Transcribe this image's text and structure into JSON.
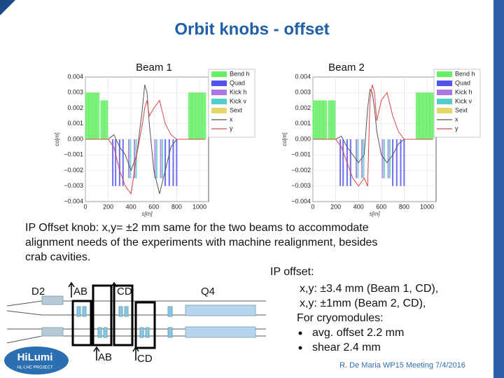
{
  "header": {
    "title": "Orbit knobs - offset"
  },
  "chart_data": [
    {
      "type": "line",
      "title": "Beam 1",
      "xlabel": "s[m]",
      "ylabel": "co[m]",
      "xlim": [
        0,
        1080
      ],
      "ylim": [
        -0.004,
        0.004
      ],
      "xticks": [
        0,
        200,
        400,
        600,
        800,
        1000
      ],
      "yticks": [
        {
          "value": -0.004,
          "label": "−0.004"
        },
        {
          "value": -0.003,
          "label": "−0.003"
        },
        {
          "value": -0.002,
          "label": "−0.002"
        },
        {
          "value": -0.001,
          "label": "−0.001"
        },
        {
          "value": 0,
          "label": "0.000"
        },
        0.001,
        0.002,
        0.003,
        0.004
      ],
      "grid": true,
      "series": [
        {
          "name": "Bend h",
          "color": "#66ee66",
          "kind": "bar",
          "x": [
            15,
            45,
            75,
            105,
            150,
            180,
            920,
            950,
            980,
            1010,
            1040
          ],
          "values": [
            0.003,
            0.003,
            0.003,
            0.003,
            0.0025,
            0.0025,
            0.003,
            0.003,
            0.003,
            0.003,
            0.003
          ]
        },
        {
          "name": "Quad",
          "color": "#5555ee",
          "kind": "bar",
          "x": [
            240,
            265,
            300,
            330,
            700,
            735,
            770,
            800
          ],
          "values": [
            -0.003,
            -0.003,
            -0.003,
            -0.003,
            -0.003,
            -0.003,
            -0.003,
            -0.003
          ]
        },
        {
          "name": "Kick h",
          "color": "#aa77dd",
          "kind": "bar",
          "x": [
            380,
            430,
            610,
            660
          ],
          "values": [
            -0.0025,
            -0.0025,
            -0.0025,
            -0.0025
          ]
        },
        {
          "name": "Kick v",
          "color": "#55cccc",
          "kind": "bar",
          "x": [
            395,
            445,
            625,
            675
          ],
          "values": [
            -0.0025,
            -0.0025,
            -0.0025,
            -0.0025
          ]
        },
        {
          "name": "Sext",
          "color": "#e8d66a",
          "kind": "bar",
          "x": [],
          "values": []
        },
        {
          "name": "x",
          "color": "#555555",
          "kind": "line",
          "x": [
            0,
            100,
            200,
            250,
            300,
            350,
            400,
            450,
            500,
            520,
            540,
            560,
            600,
            650,
            700,
            750,
            800,
            850,
            900,
            1000,
            1050
          ],
          "values": [
            0,
            0,
            0,
            0.0003,
            -0.0005,
            -0.001,
            -0.002,
            -0.001,
            0.002,
            0.0035,
            0.003,
            0.001,
            -0.002,
            -0.0035,
            -0.002,
            -0.0005,
            0,
            0,
            0,
            0,
            0
          ]
        },
        {
          "name": "y",
          "color": "#dd4444",
          "kind": "line",
          "x": [
            0,
            100,
            200,
            250,
            300,
            350,
            400,
            450,
            500,
            520,
            540,
            560,
            600,
            650,
            700,
            750,
            800,
            850,
            900,
            1000,
            1050
          ],
          "values": [
            0,
            0,
            0,
            -0.0005,
            -0.002,
            -0.003,
            -0.0035,
            -0.001,
            0.001,
            0.002,
            0.0025,
            0.0015,
            0.002,
            0.0025,
            0.001,
            0.0003,
            0,
            0,
            0,
            0,
            0
          ]
        }
      ]
    },
    {
      "type": "line",
      "title": "Beam 2",
      "xlabel": "s[m]",
      "ylabel": "co[m]",
      "xlim": [
        0,
        1080
      ],
      "ylim": [
        -0.004,
        0.004
      ],
      "xticks": [
        0,
        200,
        400,
        600,
        800,
        1000
      ],
      "yticks": [
        {
          "value": -0.004,
          "label": "−0.004"
        },
        {
          "value": -0.003,
          "label": "−0.003"
        },
        {
          "value": -0.002,
          "label": "−0.002"
        },
        {
          "value": -0.001,
          "label": "−0.001"
        },
        {
          "value": 0,
          "label": "0.000"
        },
        0.001,
        0.002,
        0.003,
        0.004
      ],
      "grid": true,
      "series": [
        {
          "name": "Bend h",
          "color": "#66ee66",
          "kind": "bar",
          "x": [
            15,
            45,
            75,
            105,
            150,
            180,
            920,
            950,
            980,
            1010,
            1040
          ],
          "values": [
            0.0025,
            0.0025,
            0.0025,
            0.0025,
            0.0025,
            0.0025,
            0.003,
            0.003,
            0.003,
            0.003,
            0.003
          ]
        },
        {
          "name": "Quad",
          "color": "#5555ee",
          "kind": "bar",
          "x": [
            240,
            265,
            300,
            330,
            700,
            735,
            770,
            800
          ],
          "values": [
            -0.003,
            -0.003,
            -0.003,
            -0.003,
            -0.003,
            -0.003,
            -0.003,
            -0.003
          ]
        },
        {
          "name": "Kick h",
          "color": "#aa77dd",
          "kind": "bar",
          "x": [
            380,
            430,
            610,
            660
          ],
          "values": [
            -0.0025,
            -0.0025,
            -0.0025,
            -0.0025
          ]
        },
        {
          "name": "Kick v",
          "color": "#55cccc",
          "kind": "bar",
          "x": [
            395,
            445,
            625,
            675
          ],
          "values": [
            -0.0025,
            -0.0025,
            -0.0025,
            -0.0025
          ]
        },
        {
          "name": "Sext",
          "color": "#e8d66a",
          "kind": "bar",
          "x": [],
          "values": []
        },
        {
          "name": "x",
          "color": "#555555",
          "kind": "line",
          "x": [
            0,
            100,
            200,
            250,
            300,
            350,
            400,
            450,
            480,
            500,
            520,
            540,
            560,
            600,
            650,
            700,
            750,
            800,
            850,
            900,
            1000,
            1050
          ],
          "values": [
            0,
            0,
            0,
            0.0002,
            -0.0005,
            -0.001,
            -0.0015,
            -0.001,
            0.002,
            0.0032,
            0.003,
            0.002,
            0.0005,
            -0.001,
            -0.0015,
            -0.001,
            -0.0003,
            0,
            0,
            0,
            0,
            0
          ]
        },
        {
          "name": "y",
          "color": "#dd4444",
          "kind": "line",
          "x": [
            0,
            100,
            200,
            250,
            300,
            350,
            400,
            450,
            480,
            500,
            520,
            540,
            560,
            600,
            650,
            700,
            750,
            800,
            850,
            900,
            1000,
            1050
          ],
          "values": [
            0,
            0,
            0,
            -0.0005,
            -0.0015,
            -0.0025,
            -0.003,
            -0.0025,
            -0.003,
            0.0025,
            0.0035,
            0.003,
            0.0012,
            0.0025,
            0.003,
            0.0015,
            0.0005,
            0,
            0,
            0,
            0,
            0
          ]
        }
      ]
    }
  ],
  "body": {
    "lines": [
      "IP Offset knob: x,y= ±2 mm same for the two beams to accommodate",
      "alignment needs of the experiments with machine realignment, besides",
      "crab cavities."
    ]
  },
  "ip_offset": {
    "title": "IP offset:",
    "lines": [
      "x,y: ±3.4 mm (Beam 1, CD),",
      "x,y: ±1mm (Beam 2, CD),",
      "For cryomodules:"
    ],
    "bullets": [
      "avg. offset 2.2 mm",
      "shear 2.4 mm"
    ]
  },
  "diagram": {
    "labels": [
      "D2",
      "AB",
      "CD",
      "Q4",
      "AB",
      "CD"
    ]
  },
  "logo": {
    "name": "HiLumi",
    "subtitle": "HL-LHC PROJECT"
  },
  "footer": {
    "text": "R. De Maria WP15 Meeting 7/4/2016"
  }
}
